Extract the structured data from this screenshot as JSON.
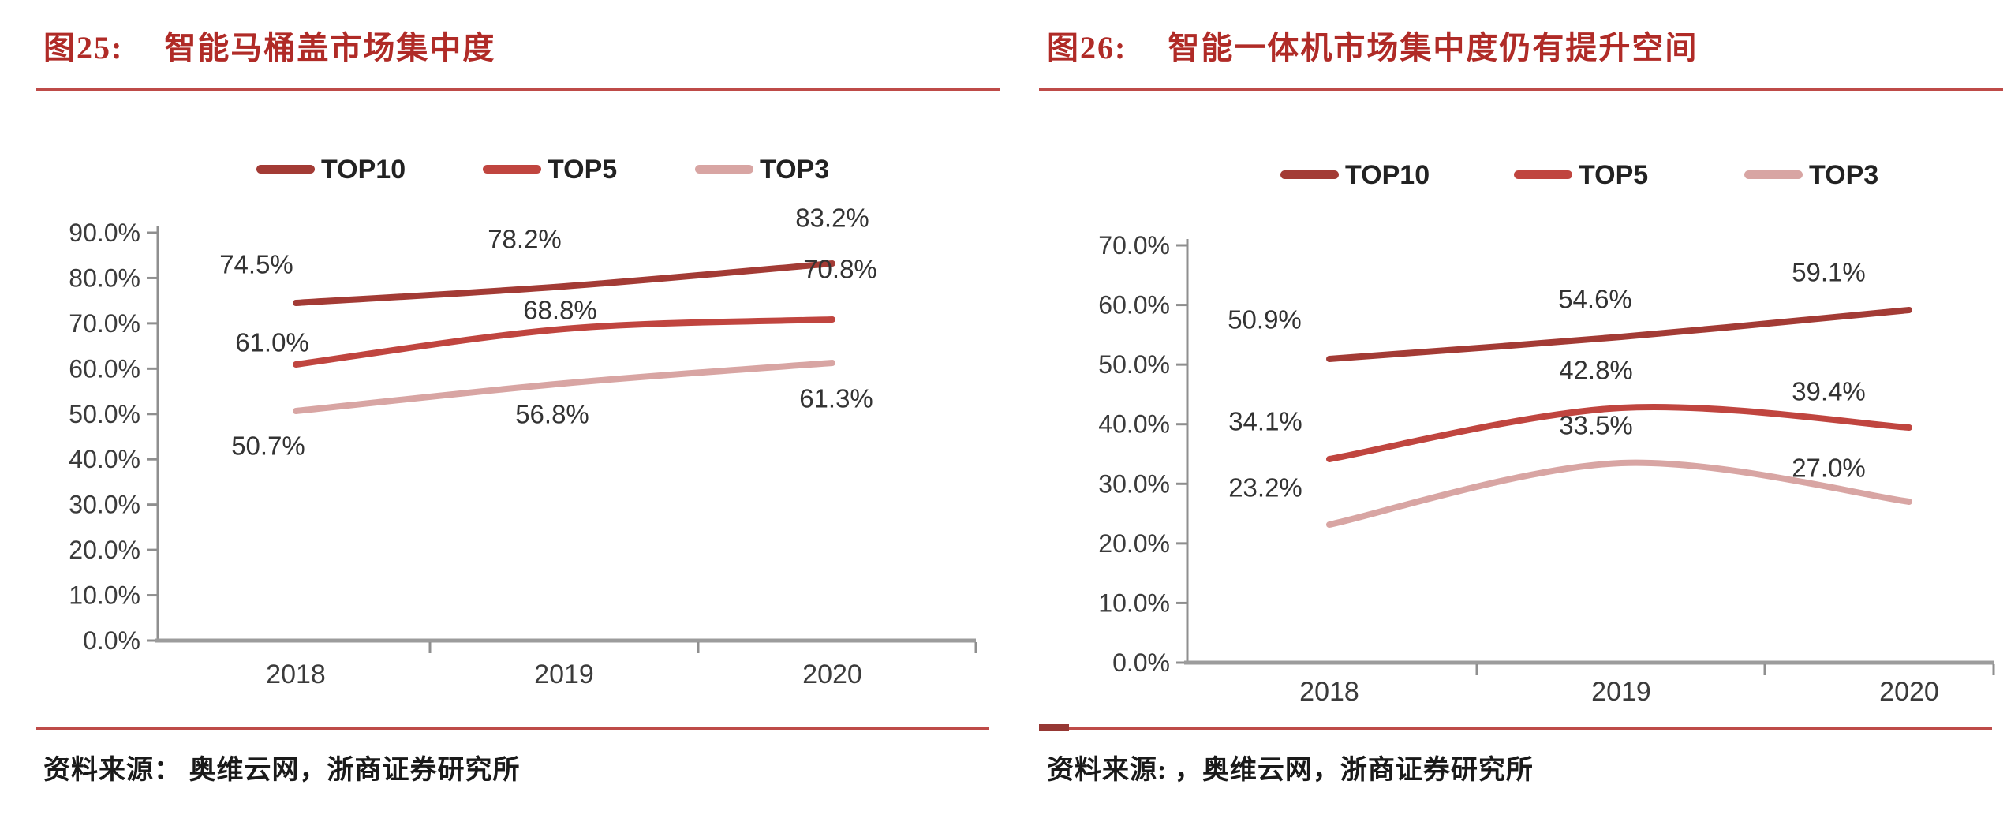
{
  "page": {
    "background": "#ffffff"
  },
  "figures": [
    {
      "label": "图25:",
      "title": "智能马桶盖市场集中度",
      "source_label": "资料来源：",
      "source_text": "奥维云网，浙商证券研究所",
      "accent_color": "#B02B27",
      "rule_color": "#BE4B48"
    },
    {
      "label": "图26:",
      "title": "智能一体机市场集中度仍有提升空间",
      "source_label": "资料来源:",
      "source_text": "，奥维云网，浙商证券研究所",
      "accent_color": "#B02B27",
      "rule_color": "#BE4B48"
    }
  ],
  "chart_data": [
    {
      "type": "line",
      "title": "智能马桶盖市场集中度",
      "categories": [
        "2018",
        "2019",
        "2020"
      ],
      "series": [
        {
          "name": "TOP10",
          "color": "#A33B35",
          "values": [
            74.5,
            78.2,
            83.2
          ]
        },
        {
          "name": "TOP5",
          "color": "#C0453F",
          "values": [
            61.0,
            68.8,
            70.8
          ]
        },
        {
          "name": "TOP3",
          "color": "#D8A5A3",
          "values": [
            50.7,
            56.8,
            61.3
          ]
        }
      ],
      "xlabel": "",
      "ylabel": "",
      "ylim": [
        0,
        90
      ],
      "ytick_step": 10,
      "grid": false,
      "legend_position": "top",
      "label_offsets": [
        [
          [
            -50,
            -49
          ],
          [
            -50,
            -60
          ],
          [
            0,
            -58
          ]
        ],
        [
          [
            -30,
            -28
          ],
          [
            -5,
            -24
          ],
          [
            10,
            -64
          ]
        ],
        [
          [
            -35,
            44
          ],
          [
            -15,
            39
          ],
          [
            5,
            45
          ]
        ]
      ]
    },
    {
      "type": "line",
      "title": "智能一体机市场集中度仍有提升空间",
      "categories": [
        "2018",
        "2019",
        "2020"
      ],
      "series": [
        {
          "name": "TOP10",
          "color": "#A33B35",
          "values": [
            50.9,
            54.6,
            59.1
          ]
        },
        {
          "name": "TOP5",
          "color": "#C0453F",
          "values": [
            34.1,
            42.8,
            39.4
          ]
        },
        {
          "name": "TOP3",
          "color": "#D8A5A3",
          "values": [
            23.2,
            33.5,
            27.0
          ]
        }
      ],
      "xlabel": "",
      "ylabel": "",
      "ylim": [
        0,
        70
      ],
      "ytick_step": 10,
      "grid": false,
      "legend_position": "top",
      "label_offsets": [
        [
          [
            -82,
            -50
          ],
          [
            -33,
            -48
          ],
          [
            -102,
            -48
          ]
        ],
        [
          [
            -81,
            -48
          ],
          [
            -32,
            -48
          ],
          [
            -102,
            -46
          ]
        ],
        [
          [
            -81,
            -47
          ],
          [
            -32,
            -48
          ],
          [
            -102,
            -43
          ]
        ]
      ]
    }
  ],
  "chart_text": {
    "axis_color": "#3b3b3b",
    "axis_line_color": "#8f8f8f",
    "value_label_color": "#333333"
  }
}
